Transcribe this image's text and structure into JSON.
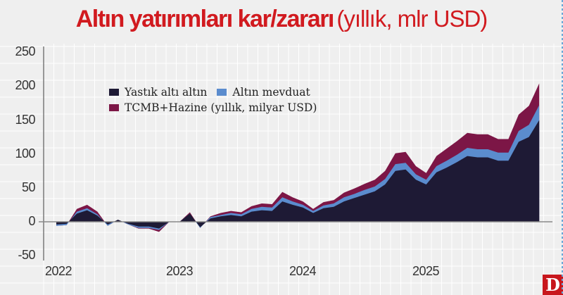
{
  "header": {
    "title_bold": "Altın yatırımları kar/zararı",
    "title_light": "(yıllık, mlr USD)"
  },
  "legend": {
    "items": [
      {
        "label": "Yastık altı altın",
        "color": "#1e1a35"
      },
      {
        "label": "Altın mevduat",
        "color": "#5b8cce"
      },
      {
        "label": "TCMB+Hazine (yıllık, milyar USD)",
        "color": "#7c1646"
      }
    ]
  },
  "axes": {
    "y_ticks": [
      "250",
      "200",
      "150",
      "100",
      "50",
      "0",
      "-50"
    ],
    "x_ticks": [
      "2022",
      "2023",
      "2024",
      "2025"
    ]
  },
  "branding": {
    "logo_letter": "D"
  },
  "chart_data": {
    "type": "area",
    "stacked": true,
    "title": "Altın yatırımları kar/zararı (yıllık, mlr USD)",
    "xlabel": "",
    "ylabel": "",
    "ylim": [
      -50,
      250
    ],
    "y_ticks": [
      -50,
      0,
      50,
      100,
      150,
      200,
      250
    ],
    "x_tick_labels": [
      "2022",
      "2023",
      "2024",
      "2025"
    ],
    "grid": true,
    "legend_position": "upper-left (inside)",
    "x": [
      "2022-01",
      "2022-02",
      "2022-03",
      "2022-04",
      "2022-05",
      "2022-06",
      "2022-07",
      "2022-08",
      "2022-09",
      "2022-10",
      "2022-11",
      "2022-12",
      "2023-01",
      "2023-02",
      "2023-03",
      "2023-04",
      "2023-05",
      "2023-06",
      "2023-07",
      "2023-08",
      "2023-09",
      "2023-10",
      "2023-11",
      "2023-12",
      "2024-01",
      "2024-02",
      "2024-03",
      "2024-04",
      "2024-05",
      "2024-06",
      "2024-07",
      "2024-08",
      "2024-09",
      "2024-10",
      "2024-11",
      "2024-12",
      "2025-01",
      "2025-02",
      "2025-03",
      "2025-04",
      "2025-05",
      "2025-06",
      "2025-07",
      "2025-08",
      "2025-09",
      "2025-10",
      "2025-11",
      "2025-12"
    ],
    "series": [
      {
        "name": "Yastık altı altın",
        "color": "#1e1a35",
        "values": [
          -4,
          -3,
          12,
          17,
          9,
          -4,
          3,
          -3,
          -7,
          -7,
          -10,
          0,
          0,
          12,
          -8,
          5,
          8,
          10,
          8,
          15,
          17,
          16,
          30,
          25,
          21,
          13,
          20,
          22,
          30,
          35,
          40,
          45,
          55,
          75,
          77,
          62,
          55,
          73,
          80,
          88,
          97,
          95,
          95,
          90,
          90,
          118,
          125,
          150
        ]
      },
      {
        "name": "Altın mevduat",
        "color": "#5b8cce",
        "values": [
          -2,
          -2,
          3,
          3,
          2,
          -2,
          0,
          -1,
          -2,
          -2,
          -2,
          0,
          0,
          0,
          -1,
          2,
          2,
          3,
          3,
          4,
          5,
          5,
          6,
          5,
          4,
          3,
          4,
          5,
          6,
          6,
          7,
          7,
          8,
          10,
          10,
          8,
          7,
          9,
          10,
          11,
          12,
          12,
          12,
          12,
          12,
          16,
          18,
          22
        ]
      },
      {
        "name": "TCMB+Hazine (yıllık, milyar USD)",
        "color": "#7c1646",
        "values": [
          0,
          0,
          4,
          5,
          4,
          0,
          0,
          0,
          -1,
          -1,
          -3,
          0,
          0,
          2,
          0,
          1,
          3,
          3,
          3,
          4,
          5,
          5,
          8,
          6,
          5,
          3,
          5,
          5,
          7,
          8,
          9,
          10,
          12,
          16,
          16,
          12,
          10,
          15,
          18,
          20,
          22,
          22,
          22,
          20,
          20,
          24,
          28,
          32
        ]
      }
    ]
  }
}
